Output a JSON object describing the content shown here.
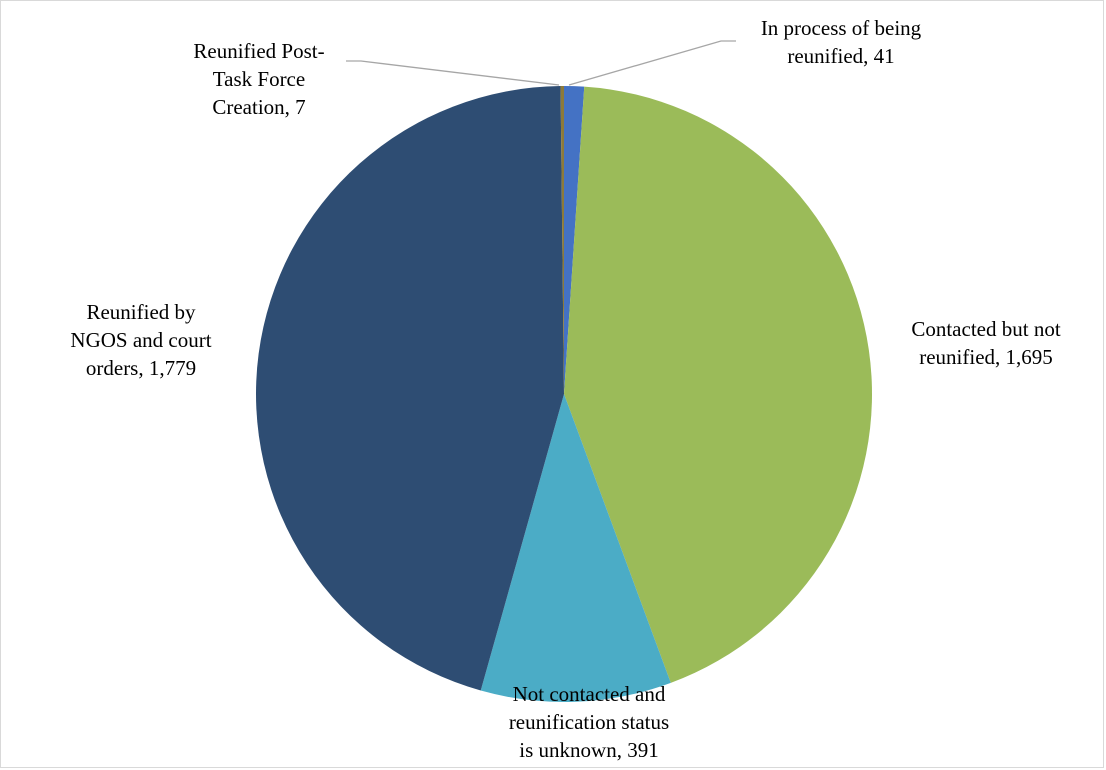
{
  "chart_data": {
    "type": "pie",
    "title": "",
    "start_angle_deg": 0,
    "direction": "clockwise",
    "slices": [
      {
        "label_lines": [
          "In process of being",
          "reunified, 41"
        ],
        "label": "In process of being reunified",
        "value": 41,
        "color": "#4472c4"
      },
      {
        "label_lines": [
          "Contacted but not",
          "reunified, 1,695"
        ],
        "label": "Contacted but not reunified",
        "value": 1695,
        "color": "#9bbb59"
      },
      {
        "label_lines": [
          "Not contacted and",
          "reunification status",
          "is unknown, 391"
        ],
        "label": "Not contacted and reunification status is unknown",
        "value": 391,
        "color": "#4bacc6"
      },
      {
        "label_lines": [
          "Reunified by",
          "NGOS and court",
          "orders, 1,779"
        ],
        "label": "Reunified by NGOS and court orders",
        "value": 1779,
        "color": "#2e4d73"
      },
      {
        "label_lines": [
          "Reunified Post-",
          "Task Force",
          "Creation, 7"
        ],
        "label": "Reunified Post-Task Force Creation",
        "value": 7,
        "color": "#8c7a3a"
      }
    ],
    "legend": "none",
    "data_labels": "outside with leader lines"
  }
}
